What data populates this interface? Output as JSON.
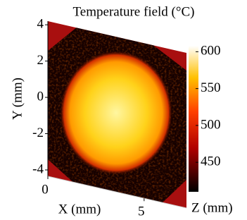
{
  "chart_data": {
    "type": "heatmap",
    "title": "Temperature field (°C)",
    "xlabel": "X (mm)",
    "ylabel": "Y (mm)",
    "zlabel": "Z (mm)",
    "xlim": [
      0,
      7.2
    ],
    "xticks": [
      0,
      5
    ],
    "ylim": [
      -4.35,
      4.2
    ],
    "yticks": [
      4,
      2,
      0,
      -2,
      -4
    ],
    "clim": [
      410,
      608
    ],
    "cticks": [
      600,
      550,
      500,
      450
    ]
  }
}
